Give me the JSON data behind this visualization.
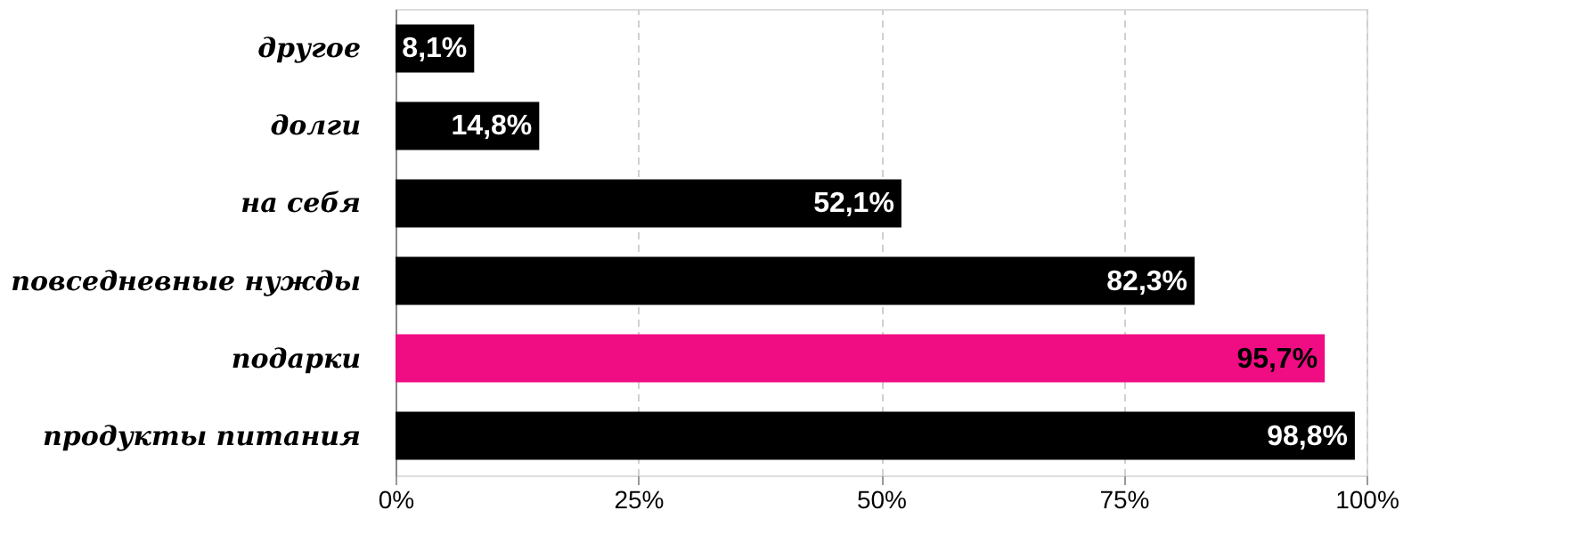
{
  "chart_data": {
    "type": "bar",
    "orientation": "horizontal",
    "categories": [
      "другое",
      "долги",
      "на себя",
      "повседневные нужды",
      "подарки",
      "продукты питания"
    ],
    "values": [
      8.1,
      14.8,
      52.1,
      82.3,
      95.7,
      98.8
    ],
    "colors": [
      "#000000",
      "#000000",
      "#000000",
      "#000000",
      "#f00c82",
      "#000000"
    ],
    "value_labels": [
      "8,1%",
      "14,8%",
      "52,1%",
      "82,3%",
      "95,7%",
      "98,8%"
    ],
    "xlim": [
      0,
      100
    ],
    "xticks": [
      {
        "value": 0,
        "label": "0%"
      },
      {
        "value": 25,
        "label": "25%"
      },
      {
        "value": 50,
        "label": "50%"
      },
      {
        "value": 75,
        "label": "75%"
      },
      {
        "value": 100,
        "label": "100%"
      }
    ],
    "grid": "x",
    "line_style": "dashed"
  }
}
